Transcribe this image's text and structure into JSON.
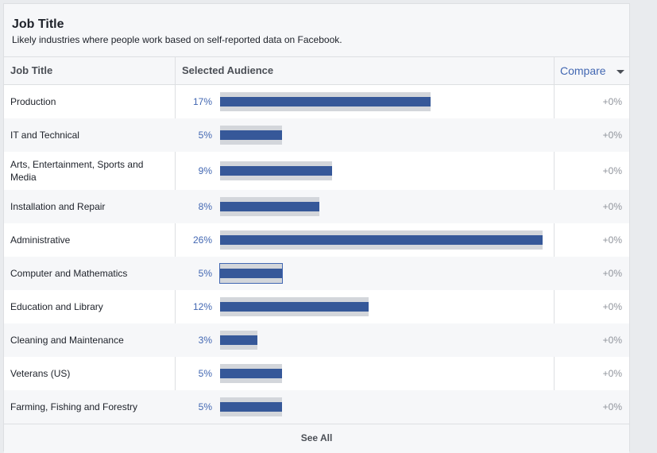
{
  "card": {
    "title": "Job Title",
    "subtitle": "Likely industries where people work based on self-reported data on Facebook."
  },
  "table": {
    "headers": {
      "job_title": "Job Title",
      "selected_audience": "Selected Audience",
      "compare": "Compare"
    },
    "rows": [
      {
        "label": "Production",
        "pct": "17%",
        "value": 17,
        "compare": "+0%"
      },
      {
        "label": "IT and Technical",
        "pct": "5%",
        "value": 5,
        "compare": "+0%"
      },
      {
        "label": "Arts, Entertainment, Sports and Media",
        "pct": "9%",
        "value": 9,
        "compare": "+0%"
      },
      {
        "label": "Installation and Repair",
        "pct": "8%",
        "value": 8,
        "compare": "+0%"
      },
      {
        "label": "Administrative",
        "pct": "26%",
        "value": 26,
        "compare": "+0%"
      },
      {
        "label": "Computer and Mathematics",
        "pct": "5%",
        "value": 5,
        "compare": "+0%"
      },
      {
        "label": "Education and Library",
        "pct": "12%",
        "value": 12,
        "compare": "+0%"
      },
      {
        "label": "Cleaning and Maintenance",
        "pct": "3%",
        "value": 3,
        "compare": "+0%"
      },
      {
        "label": "Veterans (US)",
        "pct": "5%",
        "value": 5,
        "compare": "+0%"
      },
      {
        "label": "Farming, Fishing and Forestry",
        "pct": "5%",
        "value": 5,
        "compare": "+0%"
      }
    ]
  },
  "footer": {
    "see_all": "See All"
  },
  "colors": {
    "bar": "#365899",
    "bar_track": "#d3d6db",
    "link": "#4267b2"
  },
  "icons": {
    "compare_dropdown": "caret-down-icon"
  }
}
